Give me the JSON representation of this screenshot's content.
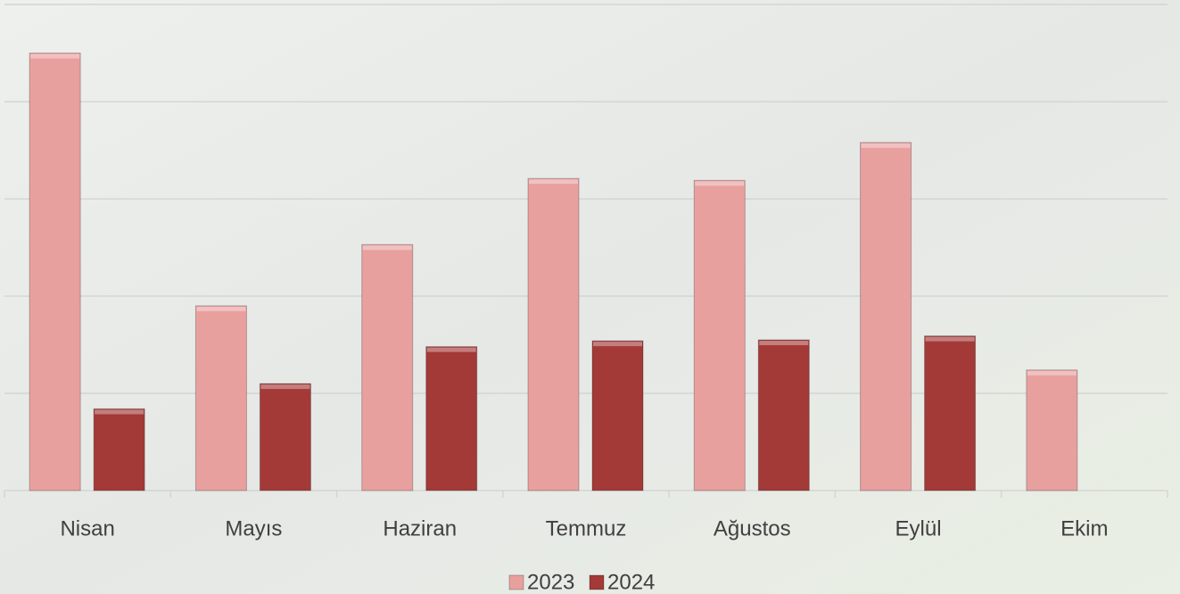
{
  "chart_data": {
    "type": "bar",
    "categories": [
      "Nisan",
      "Mayıs",
      "Haziran",
      "Temmuz",
      "Ağustos",
      "Eylül",
      "Ekim"
    ],
    "series": [
      {
        "name": "2023",
        "color": "#e8a09f",
        "values": [
          4.5,
          1.9,
          2.53,
          3.21,
          3.19,
          3.58,
          1.24
        ]
      },
      {
        "name": "2024",
        "color": "#a33a38",
        "values": [
          0.84,
          1.1,
          1.48,
          1.54,
          1.55,
          1.59,
          null
        ]
      }
    ],
    "ylim": [
      0,
      5
    ],
    "yticks": [
      0,
      1,
      2,
      3,
      4,
      5
    ],
    "grid": true,
    "legend": "bottom"
  }
}
